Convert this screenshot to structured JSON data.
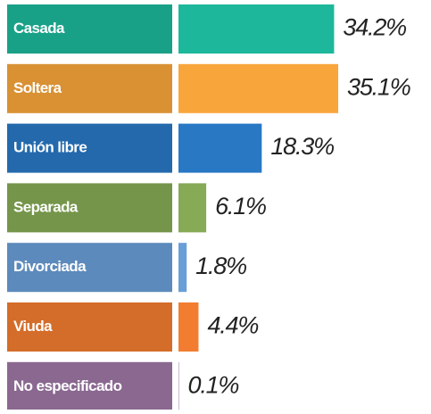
{
  "chart_data": {
    "type": "bar",
    "orientation": "horizontal",
    "categories": [
      "Casada",
      "Soltera",
      "Unión libre",
      "Separada",
      "Divorciada",
      "Viuda",
      "No especificado"
    ],
    "values": [
      34.2,
      35.1,
      18.3,
      6.1,
      1.8,
      4.4,
      0.1
    ],
    "value_labels": [
      "34.2%",
      "35.1%",
      "18.3%",
      "6.1%",
      "1.8%",
      "4.4%",
      "0.1%"
    ],
    "colors": [
      "#1db89b",
      "#f8a63c",
      "#2878c4",
      "#86aa55",
      "#6a9ed6",
      "#f27d30",
      "#9e77a4"
    ]
  }
}
